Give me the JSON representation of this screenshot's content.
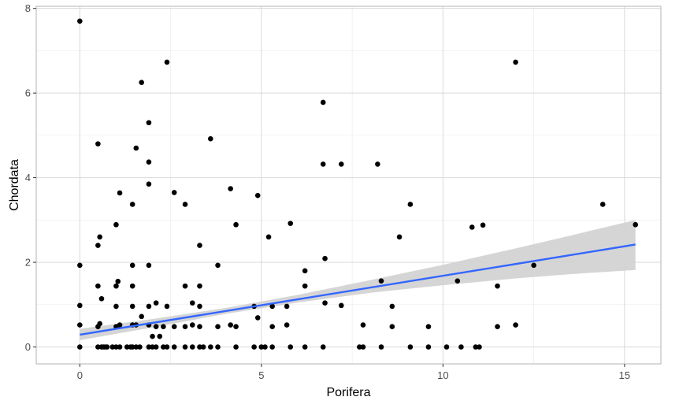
{
  "chart_data": {
    "type": "scatter",
    "title": "",
    "xlabel": "Porifera",
    "ylabel": "Chordata",
    "xlim": [
      -1.2,
      16.0
    ],
    "ylim": [
      -0.4,
      8.05
    ],
    "xticks": [
      0,
      5,
      10,
      15
    ],
    "yticks": [
      0,
      2,
      4,
      6,
      8
    ],
    "x_tick_labels": [
      "0",
      "5",
      "10",
      "15"
    ],
    "y_tick_labels": [
      "0",
      "2",
      "4",
      "6",
      "8"
    ],
    "grid": true,
    "legend": "none",
    "colors": {
      "points": "#000000",
      "fit_line": "#3366FF",
      "ribbon": "#d3d3d3",
      "grid_major": "#d9d9d9",
      "grid_minor": "#ebebeb",
      "panel_border": "#b3b3b3"
    },
    "fit": {
      "method": "linear",
      "x": [
        0,
        15.3
      ],
      "y": [
        0.29,
        2.42
      ],
      "ribbon_x": [
        0,
        2,
        4,
        6,
        8,
        10,
        12,
        13.5,
        15.3
      ],
      "ribbon_lower": [
        0.16,
        0.46,
        0.78,
        1.05,
        1.28,
        1.46,
        1.62,
        1.72,
        1.82
      ],
      "ribbon_upper": [
        0.43,
        0.66,
        0.92,
        1.23,
        1.58,
        1.94,
        2.33,
        2.63,
        3.0
      ]
    },
    "points": [
      [
        0,
        7.7
      ],
      [
        0,
        1.93
      ],
      [
        0,
        0.98
      ],
      [
        0,
        0.52
      ],
      [
        0,
        0
      ],
      [
        0.5,
        4.8
      ],
      [
        0.5,
        2.4
      ],
      [
        0.5,
        1.44
      ],
      [
        0.5,
        0.48
      ],
      [
        0.5,
        0
      ],
      [
        0.55,
        2.6
      ],
      [
        0.55,
        0.55
      ],
      [
        0.6,
        1.14
      ],
      [
        0.6,
        0
      ],
      [
        0.65,
        0
      ],
      [
        0.7,
        0
      ],
      [
        0.75,
        0
      ],
      [
        0.9,
        0
      ],
      [
        1.0,
        2.89
      ],
      [
        1.0,
        1.44
      ],
      [
        1.0,
        0.96
      ],
      [
        1.0,
        0.48
      ],
      [
        1.0,
        0
      ],
      [
        1.05,
        1.55
      ],
      [
        1.1,
        3.64
      ],
      [
        1.1,
        0.52
      ],
      [
        1.1,
        0
      ],
      [
        1.3,
        0
      ],
      [
        1.4,
        0
      ],
      [
        1.45,
        3.37
      ],
      [
        1.45,
        1.93
      ],
      [
        1.45,
        1.44
      ],
      [
        1.45,
        0.96
      ],
      [
        1.45,
        0.52
      ],
      [
        1.45,
        0
      ],
      [
        1.55,
        4.7
      ],
      [
        1.55,
        0.52
      ],
      [
        1.55,
        0
      ],
      [
        1.65,
        0
      ],
      [
        1.7,
        6.25
      ],
      [
        1.7,
        0.72
      ],
      [
        1.9,
        5.3
      ],
      [
        1.9,
        4.37
      ],
      [
        1.9,
        3.85
      ],
      [
        1.9,
        1.93
      ],
      [
        1.9,
        0.96
      ],
      [
        1.9,
        0.52
      ],
      [
        1.9,
        0
      ],
      [
        2.0,
        0.25
      ],
      [
        2.0,
        0
      ],
      [
        2.1,
        1.04
      ],
      [
        2.1,
        0.48
      ],
      [
        2.1,
        0
      ],
      [
        2.2,
        0.25
      ],
      [
        2.3,
        0.48
      ],
      [
        2.3,
        0
      ],
      [
        2.4,
        6.73
      ],
      [
        2.4,
        0.96
      ],
      [
        2.4,
        0
      ],
      [
        2.6,
        3.65
      ],
      [
        2.6,
        0.48
      ],
      [
        2.6,
        0
      ],
      [
        2.9,
        3.37
      ],
      [
        2.9,
        1.44
      ],
      [
        2.9,
        0.48
      ],
      [
        2.9,
        0
      ],
      [
        3.1,
        1.04
      ],
      [
        3.1,
        0.52
      ],
      [
        3.1,
        0
      ],
      [
        3.3,
        2.4
      ],
      [
        3.3,
        1.44
      ],
      [
        3.3,
        0.96
      ],
      [
        3.3,
        0.48
      ],
      [
        3.3,
        0
      ],
      [
        3.4,
        0
      ],
      [
        3.6,
        4.92
      ],
      [
        3.6,
        0
      ],
      [
        3.8,
        1.93
      ],
      [
        3.8,
        0.48
      ],
      [
        3.8,
        0
      ],
      [
        4.15,
        3.74
      ],
      [
        4.15,
        0.52
      ],
      [
        4.3,
        2.89
      ],
      [
        4.3,
        0.48
      ],
      [
        4.3,
        0
      ],
      [
        4.8,
        0.96
      ],
      [
        4.8,
        0
      ],
      [
        4.9,
        3.58
      ],
      [
        4.9,
        0.69
      ],
      [
        5.0,
        0
      ],
      [
        5.1,
        0
      ],
      [
        5.2,
        2.6
      ],
      [
        5.3,
        0.96
      ],
      [
        5.3,
        0.48
      ],
      [
        5.3,
        0
      ],
      [
        5.8,
        2.92
      ],
      [
        5.7,
        0.96
      ],
      [
        5.7,
        0.52
      ],
      [
        5.8,
        0
      ],
      [
        6.2,
        1.8
      ],
      [
        6.2,
        1.44
      ],
      [
        6.2,
        0
      ],
      [
        6.7,
        5.78
      ],
      [
        6.7,
        4.32
      ],
      [
        6.75,
        2.09
      ],
      [
        6.75,
        1.04
      ],
      [
        6.7,
        0
      ],
      [
        7.2,
        4.32
      ],
      [
        7.2,
        0.98
      ],
      [
        7.7,
        0
      ],
      [
        7.8,
        0.52
      ],
      [
        7.8,
        0
      ],
      [
        8.2,
        4.32
      ],
      [
        8.3,
        1.56
      ],
      [
        8.3,
        0
      ],
      [
        8.6,
        0.96
      ],
      [
        8.6,
        0.48
      ],
      [
        8.8,
        2.6
      ],
      [
        9.1,
        3.37
      ],
      [
        9.1,
        0
      ],
      [
        9.6,
        0.48
      ],
      [
        9.6,
        0
      ],
      [
        10.1,
        0
      ],
      [
        10.4,
        1.56
      ],
      [
        10.5,
        0
      ],
      [
        10.8,
        2.83
      ],
      [
        10.9,
        0
      ],
      [
        11.1,
        2.88
      ],
      [
        11.0,
        0
      ],
      [
        11.5,
        1.44
      ],
      [
        11.5,
        0.48
      ],
      [
        12.0,
        6.73
      ],
      [
        12.0,
        0.52
      ],
      [
        12.5,
        1.93
      ],
      [
        14.4,
        3.37
      ],
      [
        15.3,
        2.89
      ]
    ]
  }
}
